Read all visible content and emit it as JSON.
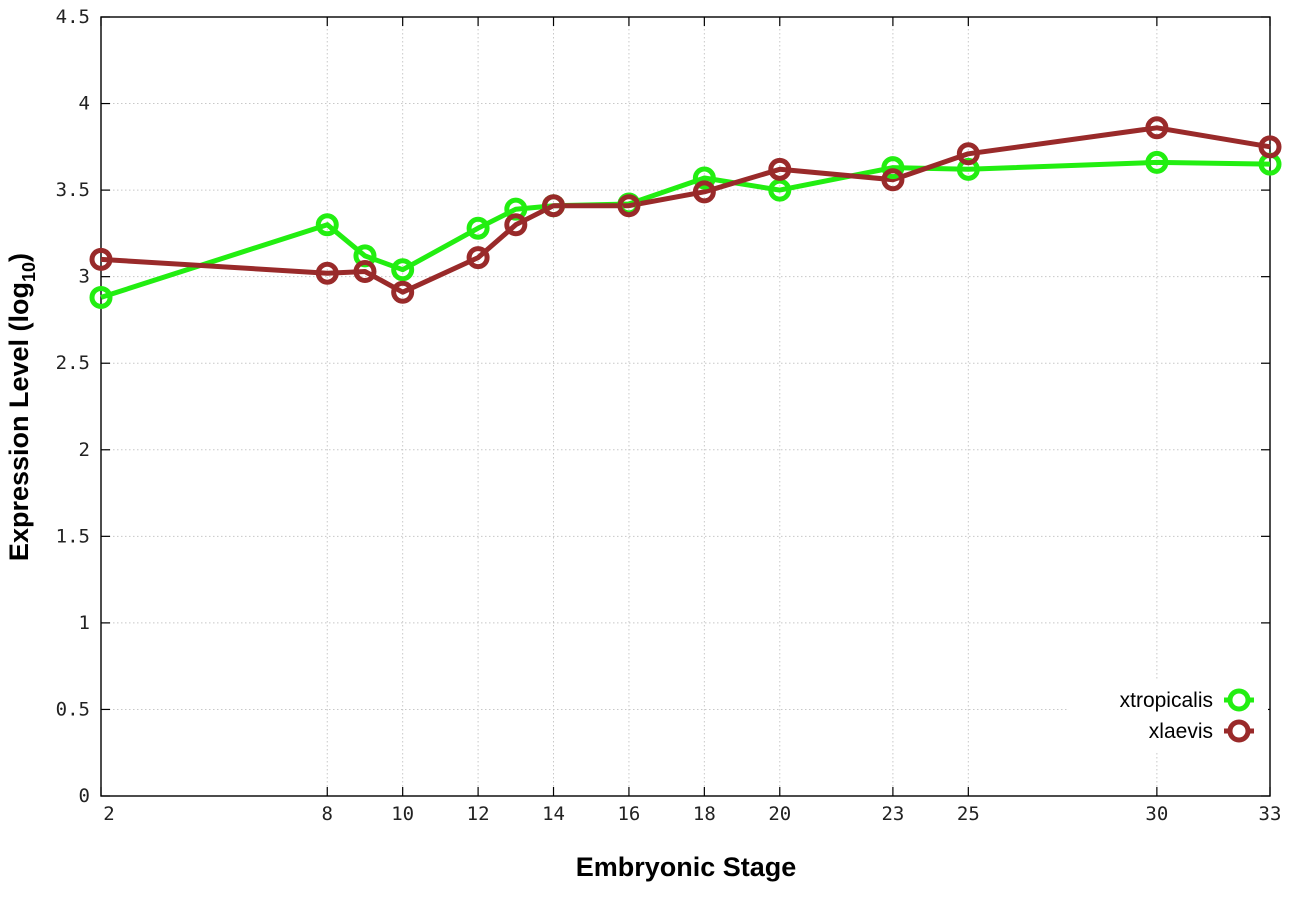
{
  "chart_data": {
    "type": "line",
    "xlabel": "Embryonic Stage",
    "ylabel_main": "Expression Level (log",
    "ylabel_sub": "10",
    "ylabel_close": ")",
    "x_tick_values": [
      2,
      8,
      10,
      12,
      14,
      16,
      18,
      20,
      23,
      25,
      30,
      33
    ],
    "x_tick_labels": [
      "2",
      "8",
      "10",
      "12",
      "14",
      "16",
      "18",
      "20",
      "23",
      "25",
      "30",
      "33"
    ],
    "y_tick_values": [
      0,
      0.5,
      1,
      1.5,
      2,
      2.5,
      3,
      3.5,
      4,
      4.5
    ],
    "y_tick_labels": [
      "0",
      "0.5",
      "1",
      "1.5",
      "2",
      "2.5",
      "3",
      "3.5",
      "4",
      "4.5"
    ],
    "xlim": [
      2,
      33
    ],
    "ylim": [
      0,
      4.5
    ],
    "grid": true,
    "legend_position": "bottom-right",
    "x": [
      2,
      8,
      9,
      10,
      12,
      13,
      14,
      16,
      18,
      20,
      23,
      25,
      30,
      33
    ],
    "series": [
      {
        "name": "xtropicalis",
        "color": "#22ee11",
        "values": [
          2.88,
          3.3,
          3.12,
          3.04,
          3.28,
          3.39,
          3.41,
          3.42,
          3.57,
          3.5,
          3.63,
          3.62,
          3.66,
          3.65
        ]
      },
      {
        "name": "xlaevis",
        "color": "#992a2a",
        "values": [
          3.1,
          3.02,
          3.03,
          2.91,
          3.11,
          3.3,
          3.41,
          3.41,
          3.49,
          3.62,
          3.56,
          3.71,
          3.86,
          3.75
        ]
      }
    ]
  }
}
